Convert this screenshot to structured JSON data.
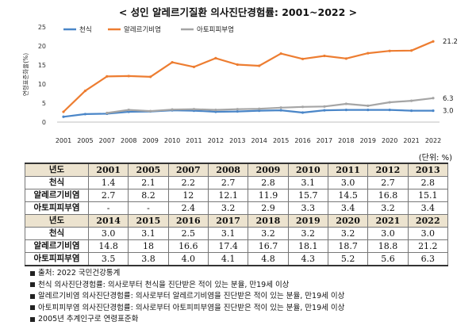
{
  "title": "< 성인 알레르기질환 의사진단경험률: 2001~2022 >",
  "unit": "(단위: %)",
  "chart_data": {
    "type": "line",
    "ylabel": "연령표준화율(%)",
    "ylim": [
      0,
      25
    ],
    "yticks": [
      0,
      5,
      10,
      15,
      20,
      25
    ],
    "x": [
      "2001",
      "2005",
      "2007",
      "2008",
      "2009",
      "2010",
      "2011",
      "2012",
      "2013",
      "2014",
      "2015",
      "2016",
      "2017",
      "2018",
      "2019",
      "2020",
      "2021",
      "2022"
    ],
    "legend": "top-left",
    "grid": false,
    "series": [
      {
        "name": "천식",
        "color": "#4a86c8",
        "values": [
          1.4,
          2.1,
          2.2,
          2.7,
          2.8,
          3.1,
          3.0,
          2.7,
          2.8,
          3.0,
          3.1,
          2.5,
          3.1,
          3.2,
          3.2,
          3.2,
          3.0,
          3.0
        ]
      },
      {
        "name": "알레르기비염",
        "color": "#ed7d31",
        "values": [
          2.7,
          8.2,
          12,
          12.1,
          11.9,
          15.7,
          14.5,
          16.8,
          15.1,
          14.8,
          18,
          16.6,
          17.4,
          16.7,
          18.1,
          18.7,
          18.8,
          21.2
        ]
      },
      {
        "name": "아토피피부염",
        "color": "#a5a5a5",
        "values": [
          null,
          null,
          2.4,
          3.2,
          2.9,
          3.3,
          3.4,
          3.2,
          3.4,
          3.5,
          3.8,
          4.0,
          4.1,
          4.8,
          4.3,
          5.2,
          5.6,
          6.3
        ]
      }
    ],
    "end_labels": [
      "3.0",
      "21.2",
      "6.3"
    ]
  },
  "table": {
    "header_label": "년도",
    "blocks": [
      {
        "years": [
          "2001",
          "2005",
          "2007",
          "2008",
          "2009",
          "2010",
          "2011",
          "2012",
          "2013"
        ],
        "rows": [
          {
            "label": "천식",
            "values": [
              "1.4",
              "2.1",
              "2.2",
              "2.7",
              "2.8",
              "3.1",
              "3.0",
              "2.7",
              "2.8"
            ]
          },
          {
            "label": "알레르기비염",
            "values": [
              "2.7",
              "8.2",
              "12",
              "12.1",
              "11.9",
              "15.7",
              "14.5",
              "16.8",
              "15.1"
            ]
          },
          {
            "label": "아토피피부염",
            "values": [
              "-",
              "-",
              "2.4",
              "3.2",
              "2.9",
              "3.3",
              "3.4",
              "3.2",
              "3.4"
            ]
          }
        ]
      },
      {
        "years": [
          "2014",
          "2015",
          "2016",
          "2017",
          "2018",
          "2019",
          "2020",
          "2021",
          "2022"
        ],
        "rows": [
          {
            "label": "천식",
            "values": [
              "3.0",
              "3.1",
              "2.5",
              "3.1",
              "3.2",
              "3.2",
              "3.2",
              "3.0",
              "3.0"
            ]
          },
          {
            "label": "알레르기비염",
            "values": [
              "14.8",
              "18",
              "16.6",
              "17.4",
              "16.7",
              "18.1",
              "18.7",
              "18.8",
              "21.2"
            ]
          },
          {
            "label": "아토피피부염",
            "values": [
              "3.5",
              "3.8",
              "4.0",
              "4.1",
              "4.8",
              "4.3",
              "5.2",
              "5.6",
              "6.3"
            ]
          }
        ]
      }
    ]
  },
  "notes": [
    "출처: 2022 국민건강통계",
    "천식 의사진단경험률: 의사로부터 천식을 진단받은 적이 있는 분율, 만19세 이상",
    "알레르기비염 의사진단경험률: 의사로부터 알레르기비염을 진단받은 적이 있는 분율, 만19세 이상",
    "아토피피부염 의사진단경험률: 의사로부터 아토피피부염을 진단받은 적이 있는 분율, 만19세 이상",
    "2005년 추계인구로 연령표준화"
  ]
}
